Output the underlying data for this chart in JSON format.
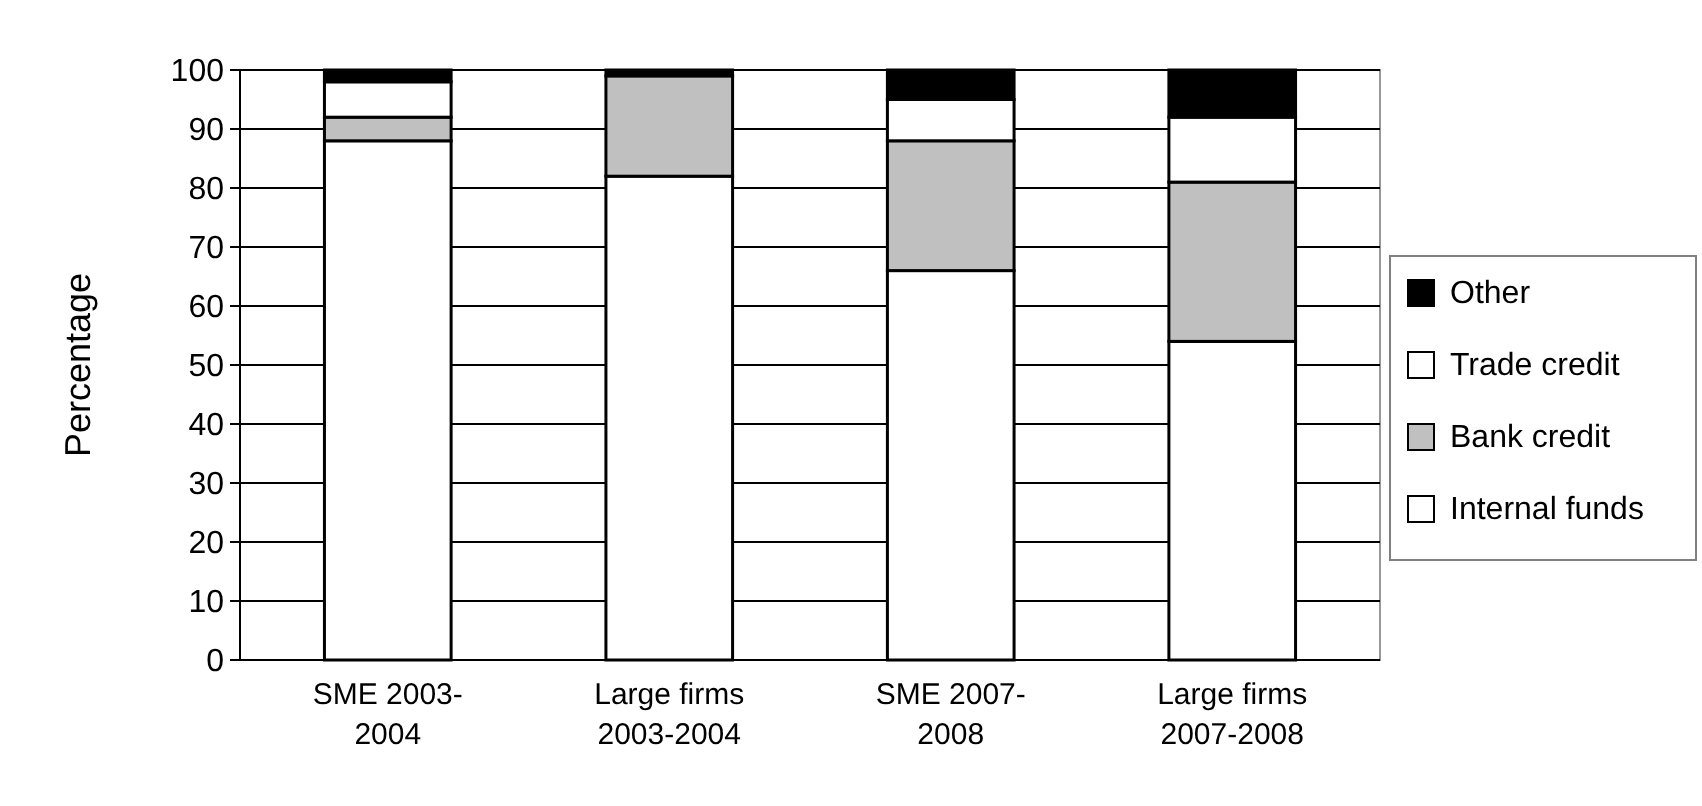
{
  "chart_data": {
    "type": "bar",
    "stacked": true,
    "ylabel": "Percentage",
    "categories": [
      "SME 2003-2004",
      "Large firms 2003-2004",
      "SME 2007-2008",
      "Large firms 2007-2008"
    ],
    "series": [
      {
        "name": "Internal funds",
        "color": "#ffffff",
        "values": [
          88,
          82,
          66,
          54
        ]
      },
      {
        "name": "Bank credit",
        "color": "#c0c0c0",
        "values": [
          4,
          17,
          22,
          27
        ]
      },
      {
        "name": "Trade credit",
        "color": "#ffffff",
        "values": [
          6,
          0,
          7,
          11
        ]
      },
      {
        "name": "Other",
        "color": "#000000",
        "values": [
          2,
          1,
          5,
          8
        ]
      }
    ],
    "ylim": [
      0,
      100
    ],
    "yticks": [
      0,
      10,
      20,
      30,
      40,
      50,
      60,
      70,
      80,
      90,
      100
    ],
    "grid": "y",
    "legend": "right"
  }
}
